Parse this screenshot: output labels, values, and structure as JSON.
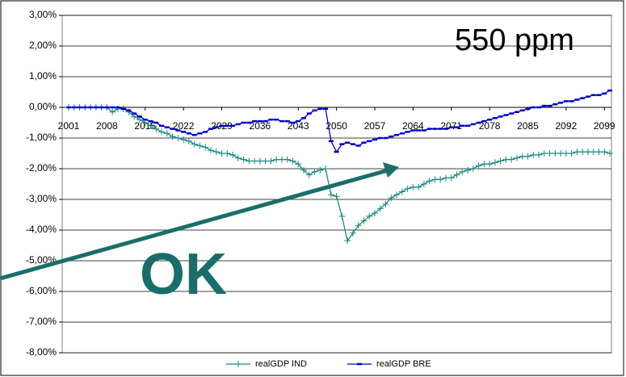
{
  "chart_data": {
    "type": "line",
    "annotations": [
      "550 ppm",
      "OK"
    ],
    "x": [
      2001,
      2002,
      2003,
      2004,
      2005,
      2006,
      2007,
      2008,
      2009,
      2010,
      2011,
      2012,
      2013,
      2014,
      2015,
      2016,
      2017,
      2018,
      2019,
      2020,
      2021,
      2022,
      2023,
      2024,
      2025,
      2026,
      2027,
      2028,
      2029,
      2030,
      2031,
      2032,
      2033,
      2034,
      2035,
      2036,
      2037,
      2038,
      2039,
      2040,
      2041,
      2042,
      2043,
      2044,
      2045,
      2046,
      2047,
      2048,
      2049,
      2050,
      2051,
      2052,
      2053,
      2054,
      2055,
      2056,
      2057,
      2058,
      2059,
      2060,
      2061,
      2062,
      2063,
      2064,
      2065,
      2066,
      2067,
      2068,
      2069,
      2070,
      2071,
      2072,
      2073,
      2074,
      2075,
      2076,
      2077,
      2078,
      2079,
      2080,
      2081,
      2082,
      2083,
      2084,
      2085,
      2086,
      2087,
      2088,
      2089,
      2090,
      2091,
      2092,
      2093,
      2094,
      2095,
      2096,
      2097,
      2098,
      2099,
      2100
    ],
    "series": [
      {
        "name": "realGDP IND",
        "color": "#1a8a80",
        "values": [
          0,
          0,
          0,
          0,
          0,
          0,
          0,
          0,
          -0.15,
          -0.05,
          -0.05,
          -0.15,
          -0.3,
          -0.4,
          -0.5,
          -0.6,
          -0.7,
          -0.8,
          -0.85,
          -0.95,
          -1.0,
          -1.05,
          -1.1,
          -1.2,
          -1.25,
          -1.3,
          -1.4,
          -1.45,
          -1.5,
          -1.5,
          -1.55,
          -1.65,
          -1.7,
          -1.75,
          -1.75,
          -1.75,
          -1.75,
          -1.75,
          -1.7,
          -1.7,
          -1.7,
          -1.75,
          -1.85,
          -2.05,
          -2.2,
          -2.1,
          -2.05,
          -2.0,
          -2.85,
          -2.9,
          -3.55,
          -4.35,
          -4.1,
          -3.85,
          -3.7,
          -3.55,
          -3.45,
          -3.3,
          -3.15,
          -2.95,
          -2.85,
          -2.75,
          -2.65,
          -2.6,
          -2.6,
          -2.5,
          -2.4,
          -2.35,
          -2.35,
          -2.3,
          -2.3,
          -2.2,
          -2.1,
          -2.05,
          -2.0,
          -1.9,
          -1.85,
          -1.85,
          -1.8,
          -1.75,
          -1.7,
          -1.7,
          -1.65,
          -1.6,
          -1.6,
          -1.55,
          -1.55,
          -1.5,
          -1.5,
          -1.5,
          -1.5,
          -1.5,
          -1.5,
          -1.45,
          -1.45,
          -1.45,
          -1.45,
          -1.45,
          -1.45,
          -1.5
        ]
      },
      {
        "name": "realGDP BRE",
        "color": "#0000cc",
        "values": [
          0,
          0,
          0,
          0,
          0,
          0,
          0,
          0,
          0,
          0,
          -0.05,
          -0.1,
          -0.2,
          -0.3,
          -0.4,
          -0.45,
          -0.5,
          -0.6,
          -0.65,
          -0.7,
          -0.75,
          -0.8,
          -0.85,
          -0.9,
          -0.85,
          -0.8,
          -0.7,
          -0.65,
          -0.6,
          -0.6,
          -0.6,
          -0.55,
          -0.5,
          -0.5,
          -0.45,
          -0.45,
          -0.45,
          -0.4,
          -0.4,
          -0.45,
          -0.45,
          -0.5,
          -0.45,
          -0.35,
          -0.2,
          -0.1,
          -0.05,
          -0.05,
          -1.1,
          -1.45,
          -1.2,
          -1.15,
          -1.2,
          -1.25,
          -1.15,
          -1.1,
          -1.05,
          -1.0,
          -1.0,
          -0.95,
          -0.9,
          -0.85,
          -0.8,
          -0.75,
          -0.75,
          -0.75,
          -0.7,
          -0.7,
          -0.7,
          -0.7,
          -0.65,
          -0.65,
          -0.6,
          -0.6,
          -0.55,
          -0.5,
          -0.45,
          -0.4,
          -0.35,
          -0.3,
          -0.25,
          -0.2,
          -0.15,
          -0.1,
          -0.05,
          0,
          0,
          0.05,
          0.05,
          0.1,
          0.15,
          0.2,
          0.2,
          0.25,
          0.3,
          0.35,
          0.4,
          0.4,
          0.45,
          0.55
        ]
      }
    ],
    "xlim": [
      2001,
      2100
    ],
    "xticks": [
      2001,
      2008,
      2015,
      2022,
      2029,
      2036,
      2043,
      2050,
      2057,
      2064,
      2071,
      2078,
      2085,
      2092,
      2099
    ],
    "ylim": [
      -8,
      3
    ],
    "yticks": [
      {
        "value": 3,
        "label": "3,00%"
      },
      {
        "value": 2,
        "label": "2,00%"
      },
      {
        "value": 1,
        "label": "1,00%"
      },
      {
        "value": 0,
        "label": "0,00%"
      },
      {
        "value": -1,
        "label": "-1,00%"
      },
      {
        "value": -2,
        "label": "-2,00%"
      },
      {
        "value": -3,
        "label": "-3,00%"
      },
      {
        "value": -4,
        "label": "-4,00%"
      },
      {
        "value": -5,
        "label": "-5,00%"
      },
      {
        "value": -6,
        "label": "-6,00%"
      },
      {
        "value": -7,
        "label": "-7,00%"
      },
      {
        "value": -8,
        "label": "-8,00%"
      }
    ],
    "grid": true,
    "legend": "bottom"
  }
}
